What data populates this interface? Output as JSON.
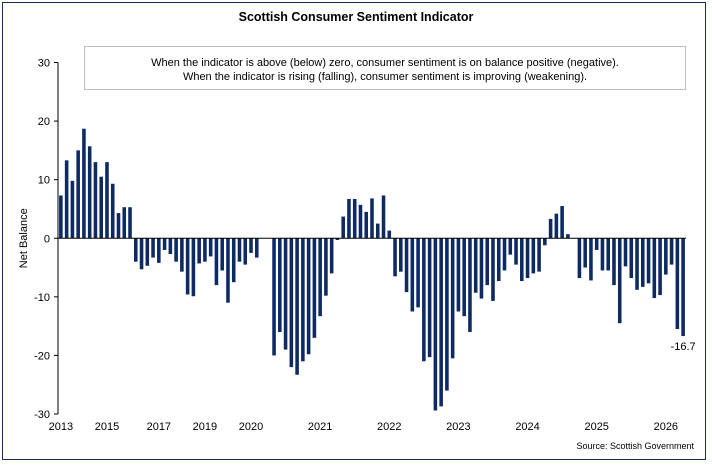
{
  "chart_data": {
    "type": "bar",
    "title": "Scottish Consumer Sentiment Indicator",
    "subtitle": [
      "When the indicator is above (below) zero, consumer sentiment is on balance positive (negative).",
      "When the indicator is rising (falling), consumer sentiment is improving (weakening)."
    ],
    "ylabel": "Net Balance",
    "xlabel": "",
    "ylim": [
      -30,
      30
    ],
    "yticks": [
      30,
      20,
      10,
      0,
      -10,
      -20,
      -30
    ],
    "xtick_labels": [
      {
        "label": "2013",
        "index": 0
      },
      {
        "label": "2015",
        "index": 8
      },
      {
        "label": "2017",
        "index": 17
      },
      {
        "label": "2019",
        "index": 25
      },
      {
        "label": "2020",
        "index": 33
      },
      {
        "label": "2021",
        "index": 45
      },
      {
        "label": "2022",
        "index": 57
      },
      {
        "label": "2023",
        "index": 69
      },
      {
        "label": "2024",
        "index": 81
      },
      {
        "label": "2025",
        "index": 93
      },
      {
        "label": "2026",
        "index": 105
      }
    ],
    "values": [
      7.3,
      13.3,
      9.8,
      15,
      18.7,
      15.7,
      13,
      10.5,
      13,
      9.3,
      4.3,
      5.3,
      5.3,
      -4,
      -5.3,
      -4.7,
      -3.3,
      -4.2,
      -2,
      -2.7,
      -4,
      -5.7,
      -9.6,
      -9.9,
      -4.3,
      -4,
      -3.1,
      -8,
      -5.5,
      -11,
      -7.5,
      -4,
      -4.5,
      -2.5,
      -3.3,
      0,
      0,
      -20,
      -16,
      -19,
      -22,
      -23.3,
      -21,
      -19.8,
      -17,
      -13.3,
      -9.8,
      -6,
      -0.3,
      3.7,
      6.7,
      6.7,
      5.7,
      4.5,
      6.8,
      2.5,
      7.3,
      1.3,
      -6.5,
      -5.7,
      -9.2,
      -12.5,
      -11.8,
      -21,
      -20.3,
      -29.4,
      -28.7,
      -26,
      -20.5,
      -12.5,
      -13.3,
      -16,
      -9.3,
      -10.3,
      -8,
      -10.7,
      -7.3,
      -5.5,
      -2.8,
      -4.5,
      -7.3,
      -6.8,
      -6,
      -5.7,
      -1.2,
      3.3,
      4.2,
      5.5,
      0.7,
      0,
      -6.8,
      -5,
      -7.2,
      -2,
      -5.5,
      -5.5,
      -8,
      -14.5,
      -4.8,
      -6.8,
      -8.8,
      -8.3,
      -7.7,
      -10.2,
      -9.7,
      -6.2,
      -4.5,
      -15.5,
      -16.7
    ],
    "data_labels": [
      {
        "index": 108,
        "text": "-16.7"
      }
    ],
    "source": "Source: Scottish Government",
    "colors": {
      "bar": "#0d2a63",
      "axis": "#000000",
      "frame": "#1a2a5a"
    },
    "grid": false
  }
}
